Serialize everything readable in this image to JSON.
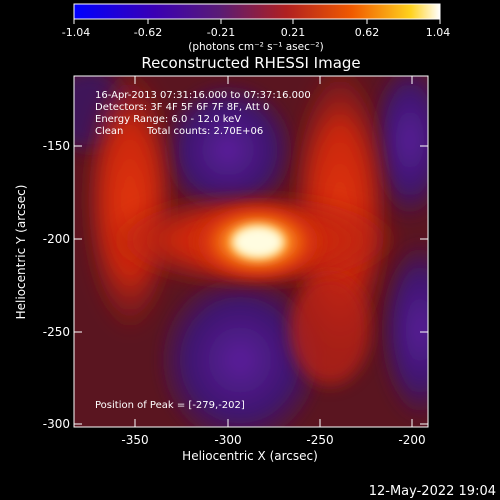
{
  "colorbar": {
    "ticks": [
      "-1.04",
      "-0.62",
      "-0.21",
      "0.21",
      "0.62",
      "1.04"
    ],
    "units": "(photons cm⁻² s⁻¹ asec⁻²)"
  },
  "title": "Reconstructed RHESSI Image",
  "annotations": {
    "time": "16-Apr-2013 07:31:16.000 to 07:37:16.000",
    "detectors": "Detectors: 3F 4F 5F 6F 7F 8F, Att 0",
    "energy": "Energy Range: 6.0 - 12.0 keV",
    "method": "Clean",
    "counts": "Total counts: 2.70E+06",
    "peak": "Position of Peak = [-279,-202]"
  },
  "axes": {
    "xlabel": "Heliocentric X (arcsec)",
    "ylabel": "Heliocentric Y (arcsec)",
    "xticks": [
      "-350",
      "-300",
      "-250",
      "-200"
    ],
    "yticks": [
      "-150",
      "-200",
      "-250",
      "-300"
    ],
    "xrange": [
      -380,
      -190
    ],
    "yrange": [
      -302,
      -112
    ]
  },
  "timestamp": "12-May-2022 19:04",
  "colors": {
    "background": "#000000",
    "low": "#1e1ed8",
    "dark": "#3a1468",
    "red": "#d42a10",
    "peak": "#fffbe0"
  }
}
